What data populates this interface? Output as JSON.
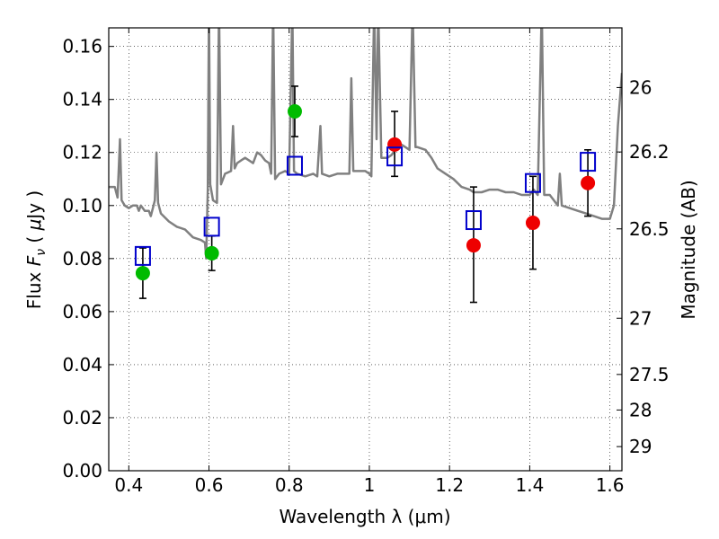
{
  "chart_data": {
    "type": "scatter",
    "xlabel": "Wavelength  λ (μm)",
    "ylabel_prefix": "Flux  ",
    "ylabel_var": "F",
    "ylabel_sub": "ν",
    "ylabel_unit_open": "  ( ",
    "ylabel_unit_mu": "μ",
    "ylabel_unit_close": "Jy )",
    "y2label": "Magnitude (AB)",
    "xlim": [
      0.35,
      1.63
    ],
    "ylim": [
      0.0,
      0.167
    ],
    "grid": true,
    "x_ticks": [
      0.4,
      0.6,
      0.8,
      1.0,
      1.2,
      1.4,
      1.6
    ],
    "x_tick_labels": [
      "0.4",
      "0.6",
      "0.8",
      "1",
      "1.2",
      "1.4",
      "1.6"
    ],
    "y_ticks": [
      0.0,
      0.02,
      0.04,
      0.06,
      0.08,
      0.1,
      0.12,
      0.14,
      0.16
    ],
    "y_tick_labels": [
      "0.00",
      "0.02",
      "0.04",
      "0.06",
      "0.08",
      "0.10",
      "0.12",
      "0.14",
      "0.16"
    ],
    "y2_ticks": [
      {
        "label": "26",
        "flux": 0.1445
      },
      {
        "label": "26.2",
        "flux": 0.1202
      },
      {
        "label": "26.5",
        "flux": 0.0912
      },
      {
        "label": "27",
        "flux": 0.0575
      },
      {
        "label": "27.5",
        "flux": 0.0363
      },
      {
        "label": "28",
        "flux": 0.0229
      },
      {
        "label": "29",
        "flux": 0.0091
      }
    ],
    "colors": {
      "model": "#808080",
      "green": "#00bb00",
      "red": "#ee0000",
      "box": "#0000cc",
      "error": "#000000"
    },
    "series": [
      {
        "marker": "circle",
        "color": "green",
        "points": [
          {
            "x": 0.435,
            "y": 0.0745,
            "yerr": [
              0.0095,
              0.0095
            ]
          },
          {
            "x": 0.607,
            "y": 0.082,
            "yerr": [
              0.0065,
              0.0065
            ]
          },
          {
            "x": 0.814,
            "y": 0.1355,
            "yerr": [
              0.0095,
              0.0095
            ]
          }
        ]
      },
      {
        "marker": "circle",
        "color": "red",
        "points": [
          {
            "x": 1.063,
            "y": 0.123,
            "yerr": [
              0.012,
              0.0125
            ]
          },
          {
            "x": 1.26,
            "y": 0.085,
            "yerr": [
              0.0215,
              0.022
            ]
          },
          {
            "x": 1.408,
            "y": 0.0935,
            "yerr": [
              0.0175,
              0.0175
            ]
          },
          {
            "x": 1.545,
            "y": 0.1085,
            "yerr": [
              0.0125,
              0.0125
            ]
          }
        ]
      },
      {
        "marker": "square",
        "color": "box",
        "points": [
          {
            "x": 0.435,
            "y": 0.081
          },
          {
            "x": 0.607,
            "y": 0.092
          },
          {
            "x": 0.814,
            "y": 0.115
          },
          {
            "x": 1.063,
            "y": 0.1185
          },
          {
            "x": 1.26,
            "y": 0.0945
          },
          {
            "x": 1.408,
            "y": 0.1085
          },
          {
            "x": 1.545,
            "y": 0.1165
          }
        ]
      }
    ],
    "model_spectrum": [
      [
        0.35,
        0.107
      ],
      [
        0.365,
        0.107
      ],
      [
        0.372,
        0.103
      ],
      [
        0.378,
        0.125
      ],
      [
        0.382,
        0.102
      ],
      [
        0.39,
        0.1
      ],
      [
        0.4,
        0.099
      ],
      [
        0.41,
        0.1
      ],
      [
        0.42,
        0.1
      ],
      [
        0.425,
        0.098
      ],
      [
        0.43,
        0.1
      ],
      [
        0.44,
        0.098
      ],
      [
        0.45,
        0.098
      ],
      [
        0.455,
        0.096
      ],
      [
        0.46,
        0.099
      ],
      [
        0.465,
        0.102
      ],
      [
        0.469,
        0.12
      ],
      [
        0.473,
        0.101
      ],
      [
        0.48,
        0.097
      ],
      [
        0.5,
        0.094
      ],
      [
        0.52,
        0.092
      ],
      [
        0.54,
        0.091
      ],
      [
        0.56,
        0.088
      ],
      [
        0.58,
        0.087
      ],
      [
        0.59,
        0.086
      ],
      [
        0.593,
        0.08
      ],
      [
        0.597,
        0.106
      ],
      [
        0.6,
        0.175
      ],
      [
        0.603,
        0.108
      ],
      [
        0.61,
        0.102
      ],
      [
        0.62,
        0.101
      ],
      [
        0.625,
        0.175
      ],
      [
        0.63,
        0.108
      ],
      [
        0.64,
        0.112
      ],
      [
        0.655,
        0.113
      ],
      [
        0.66,
        0.13
      ],
      [
        0.664,
        0.114
      ],
      [
        0.67,
        0.116
      ],
      [
        0.68,
        0.117
      ],
      [
        0.69,
        0.118
      ],
      [
        0.7,
        0.117
      ],
      [
        0.71,
        0.116
      ],
      [
        0.72,
        0.12
      ],
      [
        0.73,
        0.119
      ],
      [
        0.74,
        0.117
      ],
      [
        0.75,
        0.116
      ],
      [
        0.755,
        0.112
      ],
      [
        0.76,
        0.175
      ],
      [
        0.765,
        0.11
      ],
      [
        0.775,
        0.112
      ],
      [
        0.79,
        0.113
      ],
      [
        0.8,
        0.112
      ],
      [
        0.808,
        0.175
      ],
      [
        0.812,
        0.113
      ],
      [
        0.82,
        0.112
      ],
      [
        0.84,
        0.111
      ],
      [
        0.86,
        0.112
      ],
      [
        0.87,
        0.111
      ],
      [
        0.878,
        0.13
      ],
      [
        0.882,
        0.112
      ],
      [
        0.9,
        0.111
      ],
      [
        0.92,
        0.112
      ],
      [
        0.94,
        0.112
      ],
      [
        0.95,
        0.112
      ],
      [
        0.955,
        0.148
      ],
      [
        0.96,
        0.113
      ],
      [
        0.975,
        0.113
      ],
      [
        0.99,
        0.113
      ],
      [
        1.0,
        0.112
      ],
      [
        1.005,
        0.111
      ],
      [
        1.012,
        0.175
      ],
      [
        1.018,
        0.125
      ],
      [
        1.022,
        0.175
      ],
      [
        1.03,
        0.118
      ],
      [
        1.045,
        0.118
      ],
      [
        1.055,
        0.119
      ],
      [
        1.06,
        0.12
      ],
      [
        1.065,
        0.121
      ],
      [
        1.07,
        0.124
      ],
      [
        1.08,
        0.123
      ],
      [
        1.09,
        0.122
      ],
      [
        1.1,
        0.121
      ],
      [
        1.108,
        0.175
      ],
      [
        1.115,
        0.122
      ],
      [
        1.12,
        0.122
      ],
      [
        1.14,
        0.121
      ],
      [
        1.155,
        0.118
      ],
      [
        1.17,
        0.114
      ],
      [
        1.19,
        0.112
      ],
      [
        1.21,
        0.11
      ],
      [
        1.23,
        0.107
      ],
      [
        1.25,
        0.106
      ],
      [
        1.26,
        0.105
      ],
      [
        1.28,
        0.105
      ],
      [
        1.3,
        0.106
      ],
      [
        1.32,
        0.106
      ],
      [
        1.34,
        0.105
      ],
      [
        1.36,
        0.105
      ],
      [
        1.38,
        0.104
      ],
      [
        1.39,
        0.104
      ],
      [
        1.4,
        0.104
      ],
      [
        1.41,
        0.106
      ],
      [
        1.42,
        0.104
      ],
      [
        1.43,
        0.175
      ],
      [
        1.436,
        0.104
      ],
      [
        1.45,
        0.104
      ],
      [
        1.46,
        0.102
      ],
      [
        1.47,
        0.1
      ],
      [
        1.475,
        0.112
      ],
      [
        1.48,
        0.1
      ],
      [
        1.5,
        0.099
      ],
      [
        1.52,
        0.098
      ],
      [
        1.54,
        0.097
      ],
      [
        1.56,
        0.096
      ],
      [
        1.58,
        0.095
      ],
      [
        1.6,
        0.095
      ],
      [
        1.61,
        0.1
      ],
      [
        1.62,
        0.13
      ],
      [
        1.63,
        0.15
      ]
    ]
  }
}
